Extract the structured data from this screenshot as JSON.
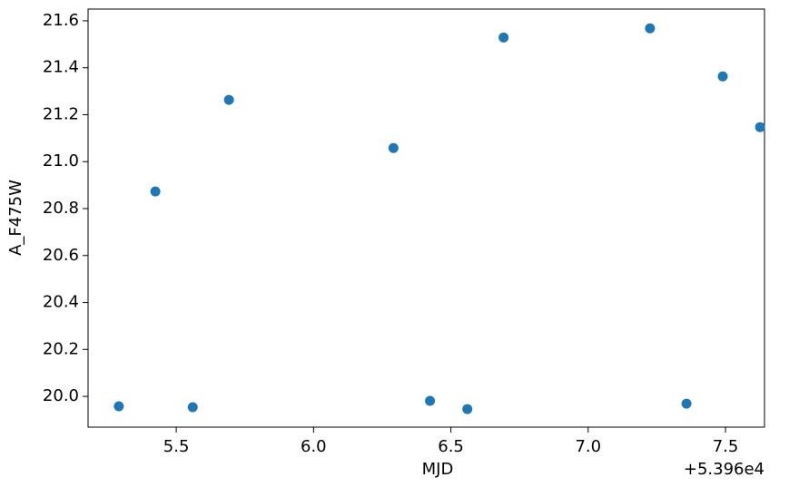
{
  "chart_data": {
    "type": "scatter",
    "x_label": "MJD",
    "y_label": "A_F475W",
    "x_offset_label": "+5.396e4",
    "series": [
      {
        "color": "#1f77b4",
        "x": [
          5.291,
          5.424,
          5.56,
          5.692,
          6.291,
          6.424,
          6.56,
          6.692,
          7.225,
          7.358,
          7.49,
          7.626
        ],
        "values": [
          19.958,
          20.873,
          19.954,
          21.263,
          21.058,
          19.981,
          19.946,
          21.529,
          21.568,
          19.969,
          21.363,
          21.147
        ]
      }
    ],
    "xlim": [
      5.179,
      7.642
    ],
    "xticks": [
      5.5,
      {
        "value": 6,
        "label": "6.0"
      },
      6.5,
      {
        "value": 7,
        "label": "7.0"
      },
      7.5
    ],
    "ylim": [
      19.869,
      21.65
    ],
    "yticks": [
      {
        "value": 20,
        "label": "20.0"
      },
      20.2,
      20.4,
      20.6,
      20.8,
      {
        "value": 21,
        "label": "21.0"
      },
      21.2,
      21.4,
      21.6
    ],
    "grid": false
  }
}
